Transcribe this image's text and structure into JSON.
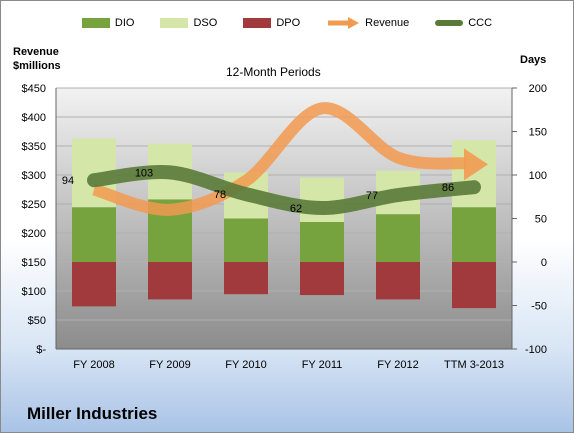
{
  "chart_data": {
    "type": "bar",
    "title": "12-Month Periods",
    "company": "Miller Industries",
    "left_axis_label_line1": "Revenue",
    "left_axis_label_line2": "$millions",
    "right_axis_label": "Days",
    "categories": [
      "FY 2008",
      "FY 2009",
      "FY 2010",
      "FY 2011",
      "FY 2012",
      "TTM 3-2013"
    ],
    "left_ticks": [
      "$450",
      "$400",
      "$350",
      "$300",
      "$250",
      "$200",
      "$150",
      "$100",
      "$50",
      "$-"
    ],
    "right_ticks": [
      "200",
      "150",
      "100",
      "50",
      "0",
      "-50",
      "-100"
    ],
    "ylim_left": [
      0,
      450
    ],
    "ylim_right": [
      -100,
      200
    ],
    "legend": [
      "DIO",
      "DSO",
      "DPO",
      "Revenue",
      "CCC"
    ],
    "colors": {
      "DIO": "#76a33e",
      "DSO": "#d4e7a9",
      "DPO": "#a13a3c",
      "Revenue": "#f29a50",
      "CCC": "#5a7a38"
    },
    "series": [
      {
        "name": "DIO",
        "axis": "right",
        "values": [
          63,
          72,
          50,
          46,
          55,
          63
        ]
      },
      {
        "name": "DSO",
        "axis": "right",
        "values": [
          79,
          64,
          53,
          51,
          50,
          77
        ]
      },
      {
        "name": "DPO",
        "axis": "right",
        "values": [
          -51,
          -43,
          -37,
          -38,
          -43,
          -53
        ]
      },
      {
        "name": "Revenue",
        "axis": "left",
        "values": [
          275,
          240,
          290,
          415,
          330,
          320
        ]
      },
      {
        "name": "CCC",
        "axis": "right",
        "values": [
          94,
          103,
          78,
          62,
          77,
          86
        ]
      }
    ],
    "ccc_labels": [
      "94",
      "103",
      "78",
      "62",
      "77",
      "86"
    ],
    "grid": true,
    "legend_position": "top"
  }
}
